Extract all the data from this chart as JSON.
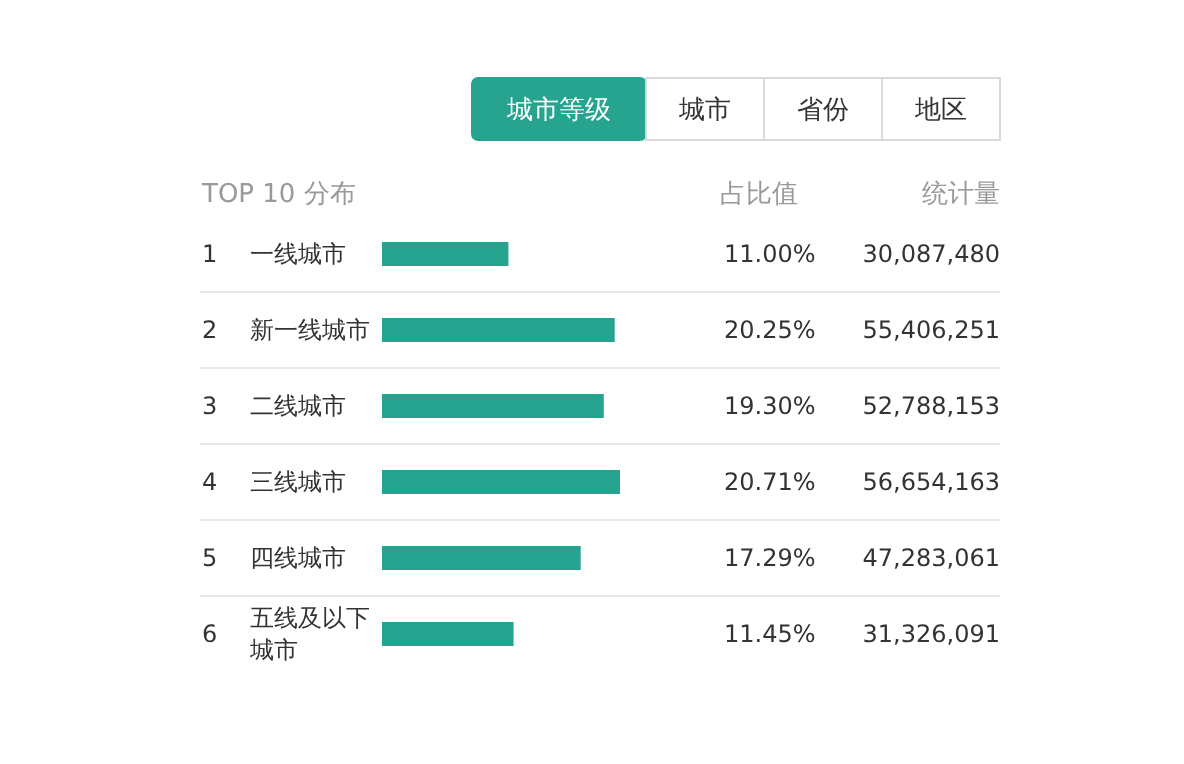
{
  "chart_data": {
    "type": "bar",
    "orientation": "horizontal",
    "title": "TOP 10 分布",
    "categories": [
      "一线城市",
      "新一线城市",
      "二线城市",
      "三线城市",
      "四线城市",
      "五线及以下城市"
    ],
    "values": [
      11.0,
      20.25,
      19.3,
      20.71,
      17.29,
      11.45
    ],
    "value_labels": [
      "11.00%",
      "20.25%",
      "19.30%",
      "20.71%",
      "17.29%",
      "11.45%"
    ],
    "color": "#26a48f",
    "annotations": [
      "城市等级",
      "城市",
      "省份",
      "地区",
      "占比值",
      "统计量",
      "1",
      "2",
      "3",
      "4",
      "5",
      "6",
      "30,087,480",
      "55,406,251",
      "52,788,153",
      "56,654,163",
      "47,283,061",
      "31,326,091"
    ]
  }
}
